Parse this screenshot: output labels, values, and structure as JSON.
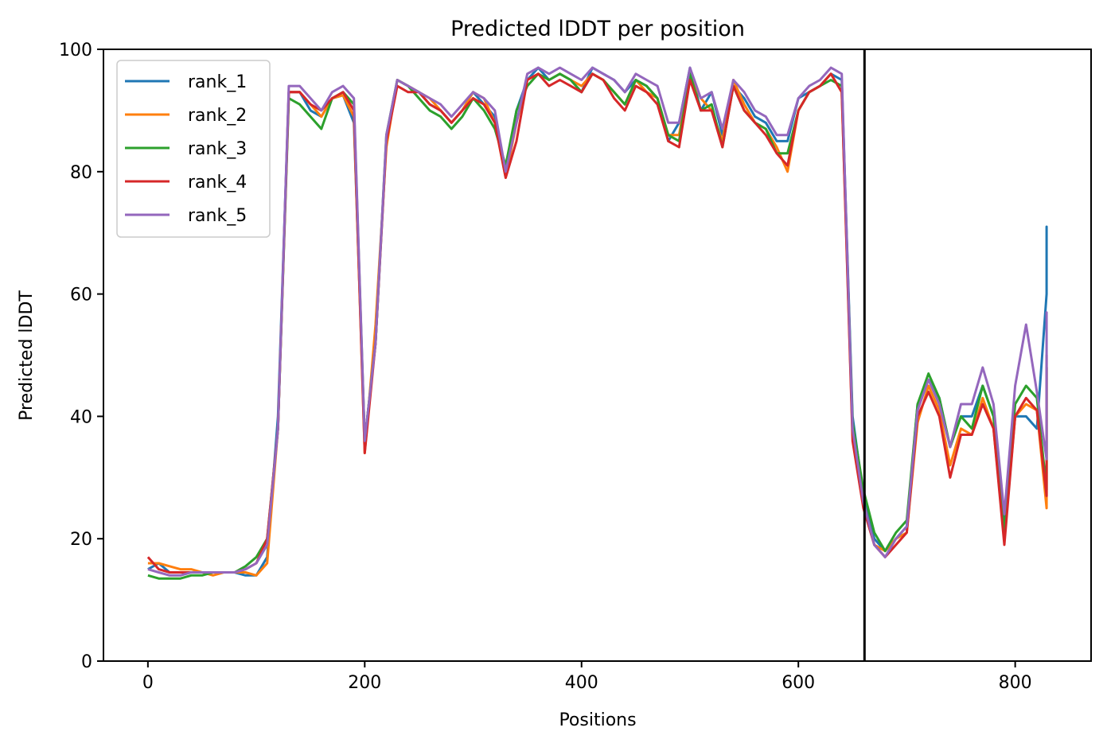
{
  "chart_data": {
    "type": "line",
    "title": "Predicted lDDT per position",
    "xlabel": "Positions",
    "ylabel": "Predicted lDDT",
    "xlim": [
      -41,
      870
    ],
    "ylim": [
      0,
      100
    ],
    "xticks": [
      0,
      200,
      400,
      600,
      800
    ],
    "yticks": [
      0,
      20,
      40,
      60,
      80,
      100
    ],
    "grid": false,
    "legend_position": "upper-left",
    "vline_x": 661,
    "vline_color": "#000000",
    "x_step": 10,
    "x_end": 829,
    "series": [
      {
        "name": "rank_1",
        "color": "#1f77b4",
        "values": [
          15,
          16,
          14.5,
          14.5,
          14.5,
          14.5,
          14.5,
          14.5,
          14.5,
          14,
          14,
          17,
          40,
          93,
          93,
          90,
          89,
          92,
          92.5,
          88,
          36,
          52,
          85,
          95,
          94,
          93,
          91,
          90,
          88,
          90,
          93,
          91,
          89,
          80,
          90,
          95,
          97,
          95,
          96,
          95,
          93,
          97,
          96,
          95,
          93,
          95,
          94,
          92,
          85,
          88,
          97,
          90,
          93,
          86,
          94,
          92,
          89,
          88,
          85,
          85,
          92,
          93,
          94,
          96,
          95,
          40,
          27,
          20,
          18,
          20,
          22,
          42,
          46,
          43,
          35,
          40,
          40,
          45,
          40,
          22,
          40,
          40,
          38,
          60,
          70,
          71,
          61
        ]
      },
      {
        "name": "rank_2",
        "color": "#ff7f0e",
        "values": [
          16,
          16,
          15.5,
          15,
          15,
          14.5,
          14,
          14.5,
          14.5,
          14.5,
          14,
          16,
          38,
          93,
          93,
          91,
          89,
          92,
          92.5,
          89,
          34,
          55,
          84,
          95,
          94,
          93,
          92,
          90,
          88,
          90,
          93,
          92,
          88,
          79,
          88,
          95,
          96,
          95,
          96,
          95,
          94,
          96,
          95,
          93,
          91,
          95,
          93,
          92,
          86,
          86,
          96,
          92,
          90,
          85,
          95,
          91,
          88,
          87,
          84,
          80,
          90,
          93,
          94,
          96,
          93,
          37,
          26,
          19,
          18,
          20,
          21,
          39,
          45,
          41,
          32,
          38,
          37,
          43,
          38,
          20,
          40,
          42,
          41,
          25,
          48,
          48,
          46
        ]
      },
      {
        "name": "rank_3",
        "color": "#2ca02c",
        "values": [
          14,
          13.5,
          13.5,
          13.5,
          14,
          14,
          14.5,
          14.5,
          14.5,
          15.5,
          17,
          20,
          38,
          92,
          91,
          89,
          87,
          92,
          93,
          91,
          36,
          52,
          86,
          95,
          94,
          92,
          90,
          89,
          87,
          89,
          92,
          90,
          87,
          81,
          90,
          94,
          96,
          95,
          96,
          95,
          93,
          96,
          95,
          93,
          91,
          95,
          94,
          92,
          86,
          85,
          96,
          90,
          91,
          84,
          94,
          90,
          88,
          87,
          83,
          83,
          90,
          93,
          94,
          95,
          94,
          39,
          28,
          21,
          18,
          21,
          23,
          42,
          47,
          43,
          35,
          40,
          38,
          45,
          40,
          21,
          42,
          45,
          43,
          28,
          48,
          47,
          36
        ]
      },
      {
        "name": "rank_4",
        "color": "#d62728",
        "values": [
          17,
          15,
          14.5,
          14.5,
          14.5,
          14.5,
          14.5,
          14.5,
          14.5,
          15,
          16,
          20,
          38,
          93,
          93,
          91,
          90,
          92,
          93,
          90,
          34,
          52,
          85,
          94,
          93,
          93,
          91,
          90,
          88,
          90,
          92,
          91,
          88,
          79,
          85,
          95,
          96,
          94,
          95,
          94,
          93,
          96,
          95,
          92,
          90,
          94,
          93,
          91,
          85,
          84,
          95,
          90,
          90,
          84,
          94,
          90,
          88,
          86,
          83,
          81,
          90,
          93,
          94,
          96,
          93,
          36,
          25,
          19,
          17,
          19,
          21,
          40,
          44,
          40,
          30,
          37,
          37,
          42,
          38,
          19,
          40,
          43,
          41,
          27,
          50,
          46,
          43
        ]
      },
      {
        "name": "rank_5",
        "color": "#9467bd",
        "values": [
          15,
          14.5,
          14,
          14,
          14.5,
          14.5,
          14.5,
          14.5,
          14.5,
          15,
          16,
          19,
          38,
          94,
          94,
          92,
          90,
          93,
          94,
          92,
          36,
          52,
          86,
          95,
          94,
          93,
          92,
          91,
          89,
          91,
          93,
          92,
          90,
          80,
          88,
          96,
          97,
          96,
          97,
          96,
          95,
          97,
          96,
          95,
          93,
          96,
          95,
          94,
          88,
          88,
          97,
          92,
          93,
          87,
          95,
          93,
          90,
          89,
          86,
          86,
          92,
          94,
          95,
          97,
          96,
          38,
          26,
          19,
          17,
          20,
          22,
          41,
          46,
          42,
          35,
          42,
          42,
          48,
          42,
          24,
          45,
          55,
          44,
          33,
          52,
          57,
          48
        ]
      }
    ]
  }
}
